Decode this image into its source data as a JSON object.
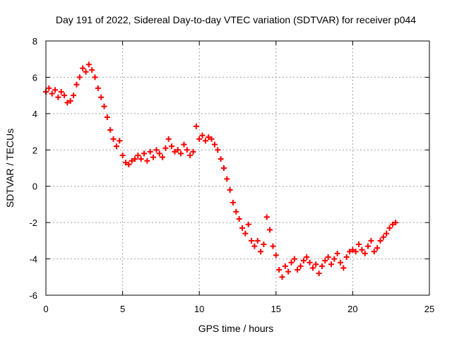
{
  "chart_data": {
    "type": "scatter",
    "title": "Day 191 of 2022, Sidereal Day-to-day VTEC variation (SDTVAR) for receiver p044",
    "xlabel": "GPS time / hours",
    "ylabel": "SDTVAR / TECUs",
    "xlim": [
      0,
      25
    ],
    "ylim": [
      -6,
      8
    ],
    "xticks": [
      0,
      5,
      10,
      15,
      20,
      25
    ],
    "yticks": [
      -6,
      -4,
      -2,
      0,
      2,
      4,
      6,
      8
    ],
    "grid": true,
    "marker": "+",
    "series": [
      {
        "name": "SDTVAR",
        "color": "#ff0000",
        "x": [
          0.0,
          0.2,
          0.4,
          0.6,
          0.8,
          1.0,
          1.2,
          1.4,
          1.6,
          1.8,
          2.0,
          2.2,
          2.4,
          2.6,
          2.8,
          3.0,
          3.2,
          3.4,
          3.6,
          3.8,
          4.0,
          4.2,
          4.4,
          4.6,
          4.8,
          5.0,
          5.2,
          5.4,
          5.6,
          5.8,
          6.0,
          6.2,
          6.4,
          6.6,
          6.8,
          7.0,
          7.2,
          7.4,
          7.6,
          7.8,
          8.0,
          8.2,
          8.4,
          8.6,
          8.8,
          9.0,
          9.2,
          9.4,
          9.6,
          9.8,
          10.0,
          10.2,
          10.4,
          10.6,
          10.8,
          11.0,
          11.2,
          11.4,
          11.6,
          11.8,
          12.0,
          12.2,
          12.4,
          12.6,
          12.8,
          13.0,
          13.2,
          13.4,
          13.6,
          13.8,
          14.0,
          14.2,
          14.4,
          14.6,
          14.8,
          15.0,
          15.2,
          15.4,
          15.6,
          15.8,
          16.0,
          16.2,
          16.4,
          16.6,
          16.8,
          17.0,
          17.2,
          17.4,
          17.6,
          17.8,
          18.0,
          18.2,
          18.4,
          18.6,
          18.8,
          19.0,
          19.2,
          19.4,
          19.6,
          19.8,
          20.0,
          20.2,
          20.4,
          20.6,
          20.8,
          21.0,
          21.2,
          21.4,
          21.6,
          21.8,
          22.0,
          22.2,
          22.4,
          22.6,
          22.8
        ],
        "values": [
          5.2,
          5.4,
          5.1,
          5.3,
          4.9,
          5.2,
          5.0,
          4.6,
          4.7,
          5.0,
          5.6,
          6.0,
          6.5,
          6.3,
          6.7,
          6.4,
          6.0,
          5.4,
          4.9,
          4.4,
          3.8,
          3.1,
          2.6,
          2.2,
          2.5,
          1.7,
          1.3,
          1.2,
          1.4,
          1.5,
          1.7,
          1.5,
          1.8,
          1.4,
          1.9,
          1.6,
          2.0,
          1.8,
          1.6,
          2.1,
          2.6,
          2.2,
          1.9,
          2.0,
          1.8,
          2.3,
          2.0,
          1.7,
          1.9,
          3.3,
          2.6,
          2.8,
          2.5,
          2.7,
          2.6,
          2.3,
          2.0,
          1.5,
          1.0,
          0.4,
          -0.2,
          -0.9,
          -1.4,
          -1.8,
          -2.3,
          -2.6,
          -2.1,
          -3.0,
          -3.3,
          -3.0,
          -3.6,
          -3.2,
          -1.7,
          -2.4,
          -3.3,
          -3.8,
          -4.6,
          -5.0,
          -4.4,
          -4.7,
          -4.2,
          -4.0,
          -4.6,
          -4.4,
          -4.1,
          -3.9,
          -4.2,
          -4.5,
          -4.3,
          -4.8,
          -4.4,
          -4.1,
          -3.9,
          -4.3,
          -4.0,
          -3.7,
          -4.2,
          -4.5,
          -3.9,
          -3.6,
          -3.5,
          -3.6,
          -3.2,
          -3.5,
          -3.7,
          -3.3,
          -3.0,
          -3.6,
          -3.4,
          -3.0,
          -2.8,
          -2.6,
          -2.3,
          -2.1,
          -2.0
        ]
      }
    ]
  }
}
